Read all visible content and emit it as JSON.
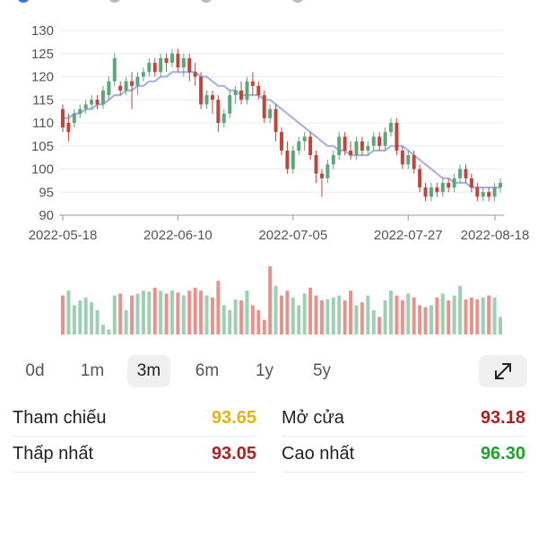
{
  "colors": {
    "up": "#5ea57a",
    "down": "#c0463c",
    "volume_up": "#9fcfb2",
    "volume_down": "#e9928b",
    "ma_line": "#a7b3e0",
    "reference": "#e2b50e",
    "decrease_value": "#b01f1f",
    "increase_value": "#1fa02c",
    "grid": "#ececec"
  },
  "chart_data": {
    "type": "candlestick",
    "y_ticks": [
      90,
      95,
      100,
      105,
      110,
      115,
      120,
      125,
      130
    ],
    "ylim": [
      90,
      130
    ],
    "x_labels": [
      "2022-05-18",
      "2022-06-10",
      "2022-07-05",
      "2022-07-27",
      "2022-08-18"
    ],
    "x_label_index": [
      0,
      20,
      40,
      60,
      80
    ],
    "candles": [
      [
        113,
        109,
        114,
        108
      ],
      [
        110,
        108,
        112,
        106
      ],
      [
        110,
        112,
        113,
        109
      ],
      [
        112,
        113,
        114,
        111
      ],
      [
        113,
        114,
        115,
        112
      ],
      [
        114,
        115,
        116,
        113
      ],
      [
        115,
        114,
        116,
        113
      ],
      [
        114,
        117,
        118,
        113
      ],
      [
        116,
        119,
        120,
        115
      ],
      [
        119,
        124,
        125,
        118
      ],
      [
        118,
        117,
        119,
        116
      ],
      [
        117,
        119,
        120,
        116
      ],
      [
        119,
        118,
        121,
        113
      ],
      [
        118,
        120,
        121,
        116
      ],
      [
        120,
        121,
        122,
        119
      ],
      [
        121,
        123,
        124,
        120
      ],
      [
        123,
        121,
        124,
        120
      ],
      [
        121,
        124,
        125,
        120
      ],
      [
        124,
        123,
        125,
        121
      ],
      [
        123,
        125,
        126,
        122
      ],
      [
        125,
        122,
        126,
        121
      ],
      [
        122,
        124,
        125,
        120
      ],
      [
        124,
        121,
        125,
        119
      ],
      [
        121,
        120,
        123,
        118
      ],
      [
        120,
        114,
        121,
        113
      ],
      [
        114,
        116,
        117,
        113
      ],
      [
        116,
        115,
        117,
        112
      ],
      [
        115,
        110,
        116,
        108
      ],
      [
        110,
        112,
        113,
        109
      ],
      [
        112,
        116,
        117,
        111
      ],
      [
        116,
        117,
        118,
        114
      ],
      [
        117,
        115,
        119,
        114
      ],
      [
        115,
        119,
        120,
        114
      ],
      [
        119,
        118,
        121,
        116
      ],
      [
        118,
        116,
        119,
        115
      ],
      [
        116,
        111,
        117,
        110
      ],
      [
        111,
        113,
        114,
        110
      ],
      [
        113,
        108,
        114,
        106
      ],
      [
        108,
        104,
        109,
        103
      ],
      [
        104,
        100,
        106,
        99
      ],
      [
        100,
        104,
        105,
        99
      ],
      [
        104,
        106,
        107,
        103
      ],
      [
        106,
        107,
        108,
        104
      ],
      [
        107,
        103,
        108,
        102
      ],
      [
        103,
        99,
        104,
        97
      ],
      [
        99,
        98,
        100,
        94
      ],
      [
        98,
        101,
        102,
        97
      ],
      [
        101,
        103,
        104,
        100
      ],
      [
        103,
        107,
        108,
        102
      ],
      [
        107,
        104,
        108,
        103
      ],
      [
        104,
        103,
        106,
        102
      ],
      [
        103,
        106,
        107,
        102
      ],
      [
        106,
        104,
        107,
        103
      ],
      [
        104,
        105,
        106,
        103
      ],
      [
        105,
        107,
        108,
        104
      ],
      [
        107,
        105,
        108,
        104
      ],
      [
        105,
        108,
        109,
        104
      ],
      [
        108,
        110,
        111,
        107
      ],
      [
        110,
        104,
        111,
        103
      ],
      [
        104,
        101,
        105,
        100
      ],
      [
        101,
        103,
        104,
        100
      ],
      [
        103,
        100,
        104,
        99
      ],
      [
        100,
        96,
        101,
        95
      ],
      [
        96,
        94,
        97,
        93
      ],
      [
        94,
        96,
        97,
        93
      ],
      [
        96,
        95,
        97,
        94
      ],
      [
        95,
        97,
        98,
        94
      ],
      [
        97,
        96,
        98,
        95
      ],
      [
        96,
        98,
        99,
        95
      ],
      [
        98,
        100,
        101,
        97
      ],
      [
        100,
        98,
        101,
        97
      ],
      [
        98,
        96,
        99,
        95
      ],
      [
        96,
        94,
        97,
        93
      ],
      [
        94,
        95,
        96,
        93
      ],
      [
        95,
        94,
        96,
        93
      ],
      [
        94,
        96,
        97,
        93
      ],
      [
        96,
        97,
        98,
        95
      ]
    ],
    "ma": [
      111,
      111,
      112,
      112,
      113,
      113,
      114,
      114,
      115,
      116,
      116,
      117,
      117,
      118,
      118,
      119,
      119,
      120,
      120,
      121,
      121,
      121,
      121,
      121,
      120,
      120,
      119,
      118,
      118,
      117,
      117,
      116,
      116,
      116,
      116,
      115,
      115,
      114,
      113,
      112,
      111,
      110,
      109,
      108,
      107,
      106,
      105,
      105,
      104,
      104,
      103,
      103,
      103,
      103,
      104,
      104,
      104,
      105,
      105,
      105,
      104,
      103,
      102,
      101,
      100,
      99,
      98,
      98,
      97,
      97,
      97,
      96,
      96,
      96,
      96,
      96,
      96
    ],
    "volume": [
      40,
      45,
      30,
      35,
      38,
      33,
      25,
      10,
      5,
      40,
      42,
      25,
      40,
      42,
      45,
      44,
      48,
      45,
      42,
      45,
      43,
      40,
      45,
      48,
      45,
      40,
      38,
      55,
      30,
      25,
      36,
      35,
      45,
      30,
      25,
      15,
      70,
      50,
      40,
      45,
      38,
      30,
      42,
      48,
      40,
      35,
      36,
      38,
      40,
      35,
      45,
      30,
      33,
      40,
      25,
      18,
      35,
      45,
      40,
      35,
      42,
      38,
      30,
      28,
      30,
      38,
      42,
      35,
      40,
      50,
      36,
      38,
      36,
      38,
      40,
      38,
      18
    ],
    "volume_dir": [
      "d",
      "u",
      "u",
      "u",
      "u",
      "u",
      "u",
      "u",
      "u",
      "u",
      "d",
      "u",
      "d",
      "u",
      "u",
      "u",
      "d",
      "u",
      "d",
      "u",
      "d",
      "u",
      "d",
      "d",
      "d",
      "u",
      "d",
      "d",
      "u",
      "u",
      "u",
      "d",
      "u",
      "d",
      "d",
      "d",
      "d",
      "u",
      "d",
      "d",
      "u",
      "u",
      "u",
      "d",
      "d",
      "d",
      "u",
      "u",
      "u",
      "d",
      "d",
      "u",
      "d",
      "u",
      "u",
      "d",
      "u",
      "u",
      "d",
      "d",
      "u",
      "d",
      "d",
      "d",
      "u",
      "d",
      "u",
      "d",
      "u",
      "u",
      "d",
      "d",
      "d",
      "u",
      "d",
      "u",
      "u"
    ]
  },
  "range_tabs": [
    "0d",
    "1m",
    "3m",
    "6m",
    "1y",
    "5y"
  ],
  "active_range": "3m",
  "stats": {
    "reference": {
      "label": "Tham chiếu",
      "value": "93.65"
    },
    "open": {
      "label": "Mở cửa",
      "value": "93.18"
    },
    "low": {
      "label": "Thấp nhất",
      "value": "93.05"
    },
    "high": {
      "label": "Cao nhất",
      "value": "96.30"
    }
  }
}
